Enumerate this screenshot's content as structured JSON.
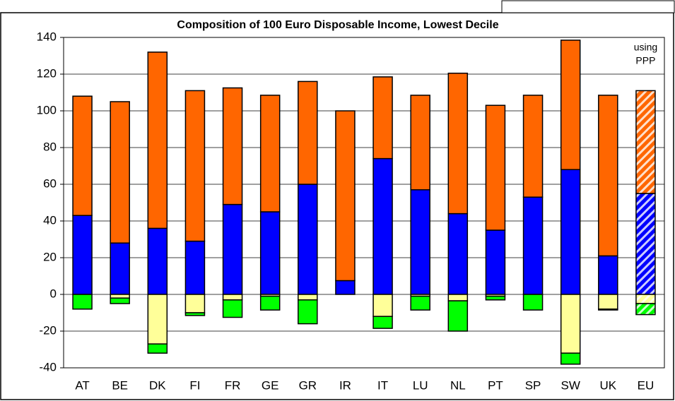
{
  "chart_data": {
    "type": "stacked_bar",
    "title": "Composition of 100 Euro Disposable Income, Lowest Decile",
    "categories": [
      "AT",
      "BE",
      "DK",
      "FI",
      "FR",
      "GE",
      "GR",
      "IR",
      "IT",
      "LU",
      "NL",
      "PT",
      "SP",
      "SW",
      "UK",
      "EU"
    ],
    "series": [
      {
        "color": "#0000ff",
        "values": [
          43,
          28,
          36,
          29,
          49,
          45,
          60,
          7.5,
          74,
          57,
          44,
          35,
          53,
          68,
          21,
          55
        ]
      },
      {
        "color": "#ff6600",
        "values": [
          65,
          77,
          96,
          82,
          63.5,
          63.5,
          56,
          92.5,
          44.5,
          51.5,
          76.5,
          68,
          55.5,
          70.5,
          87.5,
          56
        ]
      },
      {
        "color": "#ffff99",
        "values": [
          0,
          -2,
          -27,
          -10,
          -3,
          -1,
          -3,
          0,
          -12,
          -1,
          -3.5,
          -1,
          0,
          -32,
          -8,
          -5
        ]
      },
      {
        "color": "#00ff00",
        "values": [
          -8,
          -3,
          -5,
          -1.5,
          -9.5,
          -7.5,
          -13,
          0,
          -6.5,
          -7.5,
          -16.5,
          -2,
          -8.5,
          -6,
          -0.5,
          -6
        ]
      }
    ],
    "hatched_category": "EU",
    "annotation": [
      "using",
      "PPP"
    ],
    "ylim": [
      -40,
      140
    ],
    "yticks": [
      -40,
      -20,
      0,
      20,
      40,
      60,
      80,
      100,
      120,
      140
    ],
    "grid": true
  }
}
